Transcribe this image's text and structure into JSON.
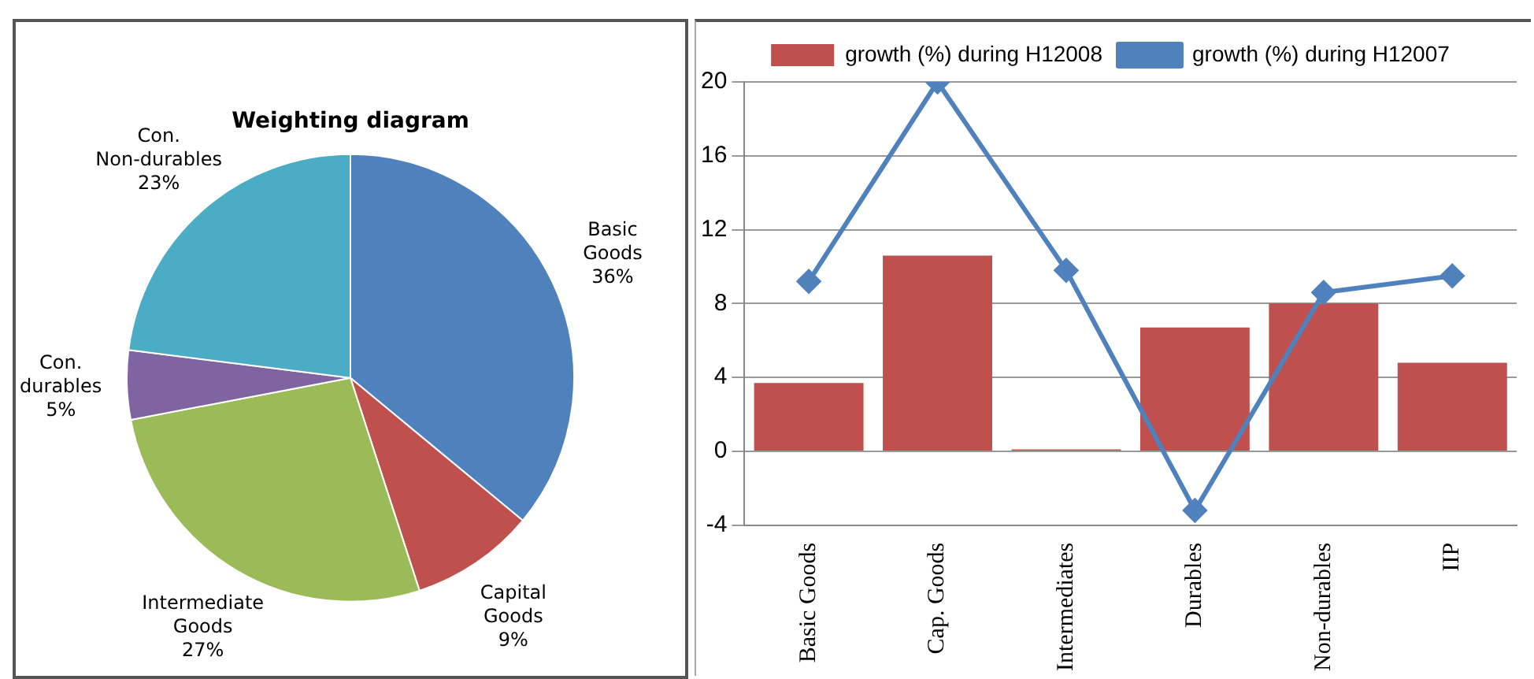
{
  "chart_data": [
    {
      "type": "pie",
      "title": "Weighting diagram",
      "categories": [
        "Basic Goods",
        "Capital Goods",
        "Intermediate Goods",
        "Con. durables",
        "Con. Non-durables"
      ],
      "values": [
        36,
        9,
        27,
        5,
        23
      ],
      "colors": [
        "#4f81bd",
        "#c0504d",
        "#9bbb59",
        "#8064a2",
        "#4bacc6"
      ],
      "value_labels": [
        "36%",
        "9%",
        "27%",
        "5%",
        "23%"
      ],
      "legend": false
    },
    {
      "type": "bar",
      "categories": [
        "Basic Goods",
        "Cap. Goods",
        "Intermediates",
        "Durables",
        "Non-durables",
        "IIP"
      ],
      "series": [
        {
          "name": "growth (%) during H12008",
          "type": "bar",
          "color": "#c0504d",
          "values": [
            3.7,
            10.6,
            0.1,
            6.7,
            8.0,
            4.8
          ]
        },
        {
          "name": "growth (%) during H12007",
          "type": "line",
          "color": "#4f81bd",
          "marker": "diamond",
          "values": [
            9.2,
            20,
            9.8,
            -3.2,
            8.6,
            9.5
          ]
        }
      ],
      "ylim": [
        -4,
        20
      ],
      "yticks": [
        -4,
        0,
        4,
        8,
        12,
        16,
        20
      ],
      "grid": "y",
      "legend": "top"
    }
  ]
}
